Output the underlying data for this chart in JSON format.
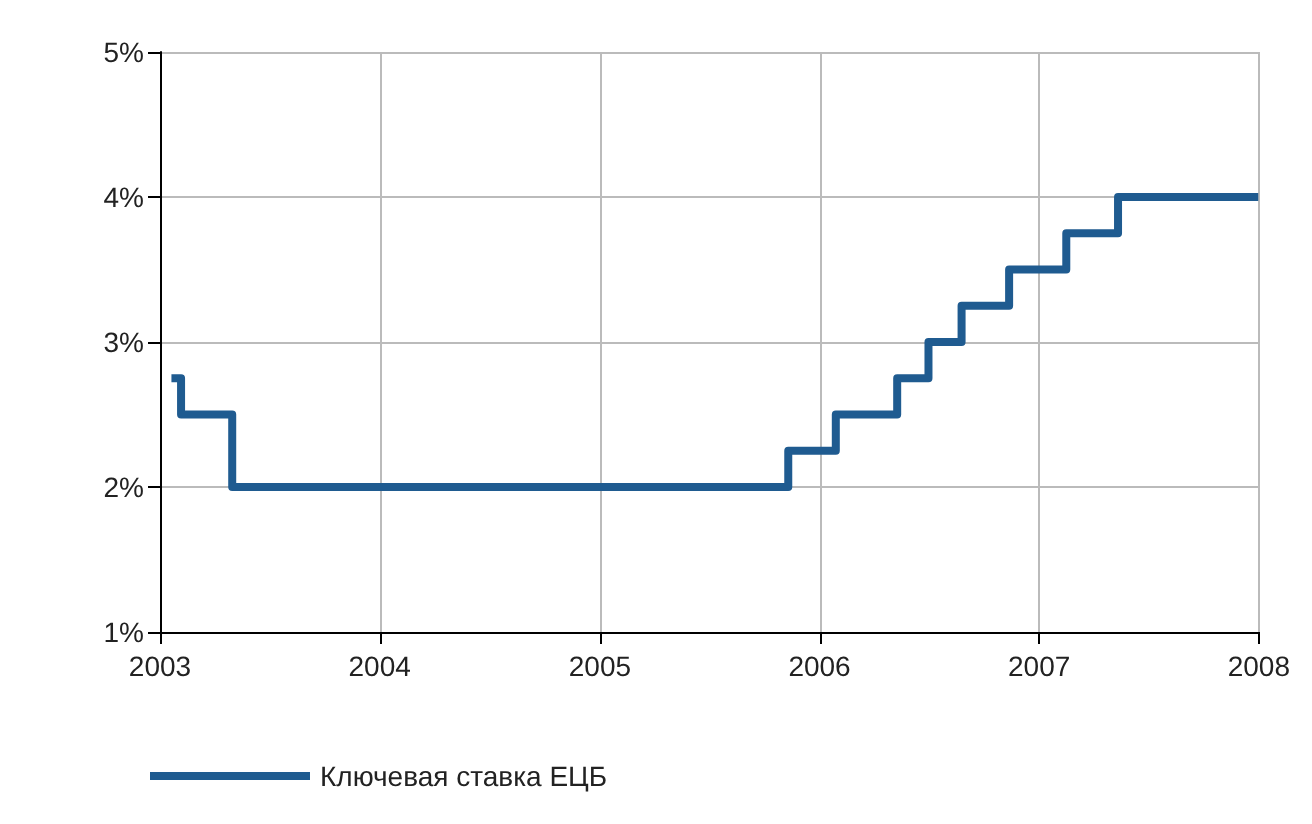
{
  "chart_data": {
    "type": "step",
    "x": [
      "2003-01-20",
      "2003-02-05",
      "2003-05-01",
      "2005-11-10",
      "2006-01-28",
      "2006-05-10",
      "2006-07-01",
      "2006-08-25",
      "2006-11-12",
      "2007-02-15",
      "2007-05-12",
      "2007-12-31"
    ],
    "series": [
      {
        "name": "Ключевая ставка ЕЦБ",
        "color": "#1f5b90",
        "values": [
          2.75,
          2.5,
          2.0,
          2.25,
          2.5,
          2.75,
          3.0,
          3.25,
          3.5,
          3.75,
          4.0,
          4.0
        ]
      }
    ],
    "xlim": [
      "2003",
      "2008"
    ],
    "xticks": [
      "2003",
      "2004",
      "2005",
      "2006",
      "2007",
      "2008"
    ],
    "ylim": [
      1,
      5
    ],
    "yticks": [
      {
        "value": 1,
        "label": "1%"
      },
      {
        "value": 2,
        "label": "2%"
      },
      {
        "value": 3,
        "label": "3%"
      },
      {
        "value": 4,
        "label": "4%"
      },
      {
        "value": 5,
        "label": "5%"
      }
    ],
    "grid": true,
    "legend": "bottom left",
    "marker": "none",
    "line_style": "solid"
  }
}
